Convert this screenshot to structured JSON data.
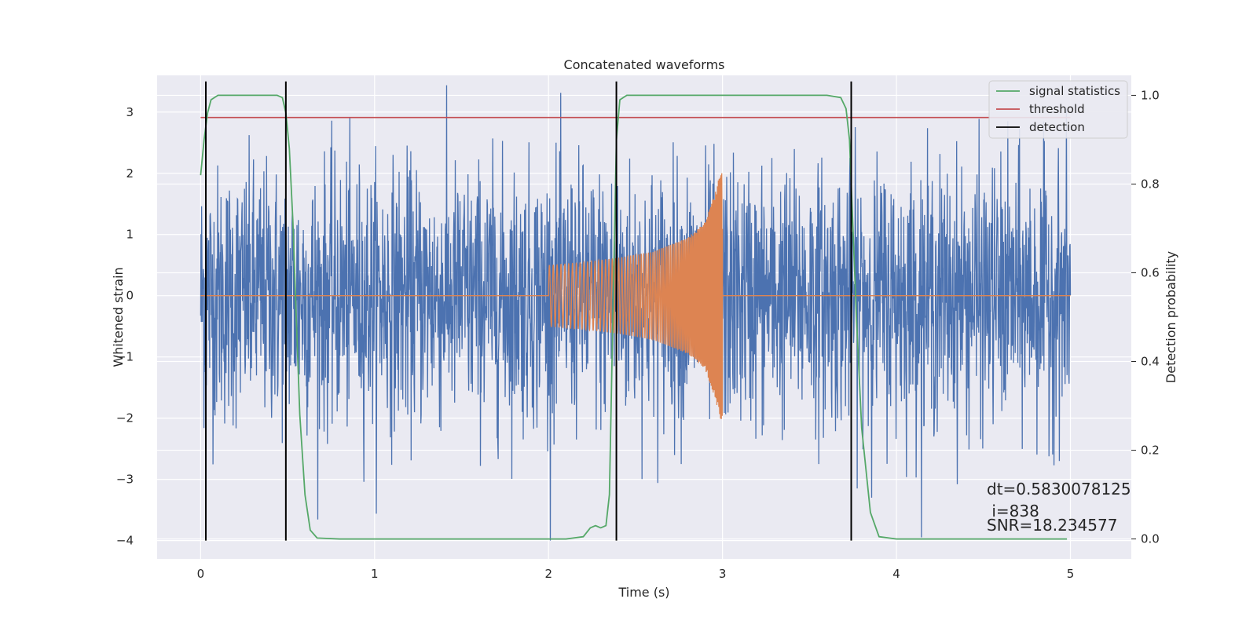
{
  "chart_data": {
    "type": "line",
    "title": "Concatenated waveforms",
    "xlabel": "Time (s)",
    "ylabel_left": "Whitened strain",
    "ylabel_right": "Detection probability",
    "xlim": [
      -0.25,
      5.35
    ],
    "ylim_left": [
      -4.3,
      3.6
    ],
    "ylim_right": [
      -0.045,
      1.045
    ],
    "xticks": [
      0,
      1,
      2,
      3,
      4,
      5
    ],
    "yticks_left": [
      -4,
      -3,
      -2,
      -1,
      0,
      1,
      2,
      3
    ],
    "yticks_right": [
      0.0,
      0.2,
      0.4,
      0.6,
      0.8,
      1.0
    ],
    "yticklabels_left": [
      "−4",
      "−3",
      "−2",
      "−1",
      "0",
      "1",
      "2",
      "3"
    ],
    "yticklabels_right": [
      "0.0",
      "0.2",
      "0.4",
      "0.6",
      "0.8",
      "1.0"
    ],
    "grid": true,
    "legend_position": "top-right",
    "colors": {
      "background": "#eaeaf2",
      "strain": "#4c72b0",
      "injected_signal": "#dd8452",
      "signal_statistics": "#55a868",
      "threshold": "#c44e52",
      "detection": "#000000"
    },
    "series": [
      {
        "name": "signal statistics",
        "axis": "right",
        "x": [
          0.0,
          0.02,
          0.04,
          0.06,
          0.1,
          0.15,
          0.3,
          0.44,
          0.47,
          0.49,
          0.51,
          0.53,
          0.55,
          0.57,
          0.6,
          0.63,
          0.67,
          0.8,
          1.5,
          2.1,
          2.2,
          2.24,
          2.27,
          2.3,
          2.33,
          2.35,
          2.37,
          2.39,
          2.41,
          2.45,
          2.6,
          3.6,
          3.68,
          3.71,
          3.73,
          3.75,
          3.77,
          3.8,
          3.85,
          3.9,
          4.0,
          4.5,
          4.98
        ],
        "values": [
          0.82,
          0.9,
          0.96,
          0.99,
          1.0,
          1.0,
          1.0,
          1.0,
          0.995,
          0.96,
          0.88,
          0.72,
          0.5,
          0.28,
          0.1,
          0.02,
          0.002,
          0.0,
          0.0,
          0.0,
          0.005,
          0.025,
          0.03,
          0.025,
          0.03,
          0.1,
          0.5,
          0.9,
          0.99,
          1.0,
          1.0,
          1.0,
          0.995,
          0.97,
          0.9,
          0.7,
          0.5,
          0.25,
          0.06,
          0.005,
          0.0,
          0.0,
          0.0
        ]
      },
      {
        "name": "threshold",
        "axis": "right",
        "x": [
          0.0,
          5.0
        ],
        "values": [
          0.95,
          0.95
        ]
      },
      {
        "name": "detection",
        "axis": "left",
        "x": [
          0.03,
          0.49,
          2.39,
          3.74
        ],
        "ymin": -4,
        "ymax": 3.5
      },
      {
        "axis": "left",
        "x_range": [
          0.0,
          5.0
        ],
        "y_range": [
          -4.0,
          3.5
        ],
        "typical_amplitude": 1.6
      },
      {
        "axis": "left",
        "x_range": [
          2.0,
          3.0
        ],
        "envelope_x": [
          2.0,
          2.2,
          2.4,
          2.6,
          2.8,
          2.9,
          2.96,
          2.99
        ],
        "envelope_amplitude": [
          0.5,
          0.55,
          0.62,
          0.72,
          0.95,
          1.2,
          1.7,
          2.05
        ]
      }
    ],
    "legend": [
      "signal statistics",
      "threshold",
      "detection"
    ],
    "annotations": [
      "dt=0.5830078125",
      " i=838",
      "SNR=18.234577"
    ]
  }
}
